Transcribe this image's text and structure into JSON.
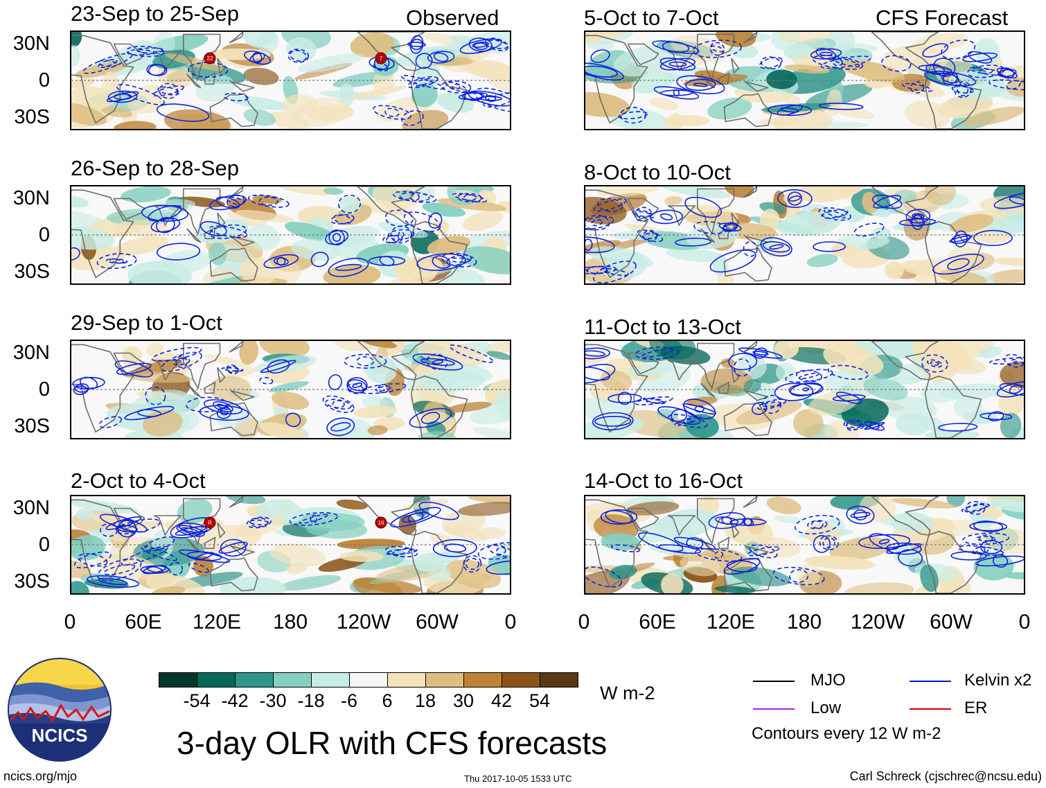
{
  "left_column": {
    "header_right": "Observed",
    "panels": [
      {
        "title": "23-Sep to 25-Sep",
        "storms": [
          "22",
          "7"
        ]
      },
      {
        "title": "26-Sep to 28-Sep",
        "storms": []
      },
      {
        "title": "29-Sep to 1-Oct",
        "storms": []
      },
      {
        "title": "2-Oct to 4-Oct",
        "storms": [
          "R",
          "16"
        ]
      }
    ]
  },
  "right_column": {
    "header_right": "CFS Forecast",
    "panels": [
      {
        "title": "5-Oct to 7-Oct"
      },
      {
        "title": "8-Oct to 10-Oct"
      },
      {
        "title": "11-Oct to 13-Oct"
      },
      {
        "title": "14-Oct to 16-Oct"
      }
    ]
  },
  "y_axis_labels": [
    "30N",
    "0",
    "30S"
  ],
  "x_axis_labels": [
    "0",
    "60E",
    "120E",
    "180",
    "120W",
    "60W",
    "0"
  ],
  "colorbar": {
    "tick_labels": [
      "-54",
      "-42",
      "-30",
      "-18",
      "-6",
      "6",
      "18",
      "30",
      "42",
      "54"
    ],
    "colors": [
      "#00392b",
      "#04685a",
      "#2f968a",
      "#84cfbf",
      "#c9ece5",
      "#f6f6f6",
      "#f3e2ba",
      "#ddbd80",
      "#bd8335",
      "#8c5517",
      "#5a3816"
    ],
    "units": "W m-2"
  },
  "title": "3-day OLR with CFS forecasts",
  "legend": {
    "items": [
      {
        "label": "MJO",
        "color": "#000000"
      },
      {
        "label": "Kelvin x2",
        "color": "#0018d8"
      },
      {
        "label": "Low",
        "color": "#a020f0"
      },
      {
        "label": "ER",
        "color": "#d00000"
      }
    ],
    "contour_note": "Contours every 12 W m-2"
  },
  "logo": {
    "text": "NCICS"
  },
  "footer": {
    "left": "ncics.org/mjo",
    "center": "Thu 2017-10-05 1533 UTC",
    "right": "Carl Schreck (cjschrec@ncsu.edu)"
  }
}
